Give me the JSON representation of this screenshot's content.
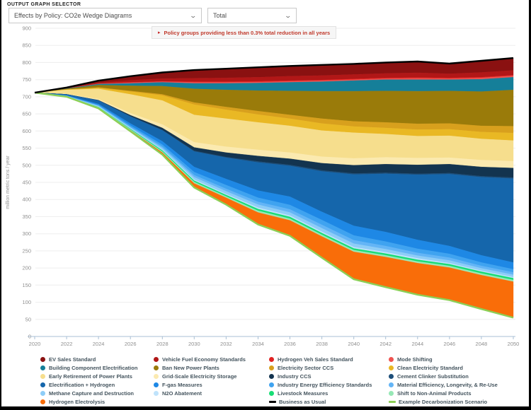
{
  "header": {
    "section_label": "OUTPUT GRAPH SELECTOR",
    "graph_selector": {
      "value": "Effects by Policy: CO2e Wedge Diagrams"
    },
    "mode_selector": {
      "value": "Total"
    },
    "note": {
      "marker": "▸",
      "text": "Policy groups providing less than 0.3% total reduction in all years"
    }
  },
  "chart_data": {
    "type": "area",
    "stacked": true,
    "title": "",
    "xlabel": "",
    "ylabel": "million metric tons / year",
    "ylim": [
      0,
      900
    ],
    "ytick_step": 50,
    "grid": true,
    "legend_position": "bottom",
    "x": [
      2020,
      2022,
      2024,
      2026,
      2028,
      2030,
      2032,
      2034,
      2036,
      2038,
      2040,
      2042,
      2044,
      2046,
      2048,
      2050
    ],
    "xticks": [
      2020,
      2022,
      2024,
      2026,
      2028,
      2030,
      2032,
      2034,
      2036,
      2038,
      2040,
      2042,
      2044,
      2046,
      2048,
      2050
    ],
    "bau_line": {
      "name": "Business as Usual",
      "color": "#000000",
      "values": [
        712,
        727,
        747,
        760,
        771,
        778,
        782,
        786,
        790,
        793,
        796,
        800,
        803,
        797,
        805,
        813
      ]
    },
    "scenario_line": {
      "name": "Example Decarbonization Scenario",
      "color": "#8ccf56",
      "values": [
        712,
        700,
        666,
        601,
        531,
        435,
        385,
        327,
        294,
        230,
        167,
        144,
        122,
        106,
        80,
        55
      ]
    },
    "series": [
      {
        "name": "EV Sales Standard",
        "color": "#8a1111",
        "values": [
          0,
          2,
          6,
          12,
          18,
          24,
          27,
          29,
          30,
          31,
          31,
          32,
          33,
          30,
          34,
          36
        ]
      },
      {
        "name": "Vehicle Fuel Economy Standards",
        "color": "#b11717",
        "values": [
          0,
          1,
          3,
          6,
          8,
          10,
          11,
          12,
          13,
          13,
          13,
          13,
          14,
          12,
          14,
          14
        ]
      },
      {
        "name": "Hydrogen Veh Sales Standard",
        "color": "#e02222",
        "values": [
          0,
          0,
          0,
          1,
          1,
          2,
          2,
          2,
          2,
          2,
          2,
          2,
          2,
          2,
          2,
          2
        ]
      },
      {
        "name": "Mode Shifting",
        "color": "#ef5350",
        "values": [
          0,
          0,
          1,
          2,
          2,
          3,
          3,
          3,
          3,
          3,
          3,
          3,
          4,
          3,
          4,
          4
        ]
      },
      {
        "name": "Building Component Electrification",
        "color": "#157f99",
        "values": [
          0,
          1,
          3,
          7,
          11,
          16,
          19,
          22,
          25,
          28,
          31,
          33,
          34,
          33,
          36,
          37
        ]
      },
      {
        "name": "Ban New Power Plants",
        "color": "#9a7b0a",
        "values": [
          0,
          2,
          7,
          15,
          24,
          40,
          50,
          60,
          70,
          80,
          88,
          92,
          95,
          95,
          100,
          106
        ]
      },
      {
        "name": "Electricity Sector CCS",
        "color": "#d8a01d",
        "values": [
          0,
          0,
          1,
          2,
          3,
          6,
          8,
          10,
          11,
          14,
          15,
          16,
          17,
          17,
          18,
          20
        ]
      },
      {
        "name": "Clean Electricity Standard",
        "color": "#e9b824",
        "values": [
          0,
          1,
          3,
          8,
          15,
          30,
          26,
          23,
          21,
          21,
          18,
          18,
          19,
          19,
          20,
          22
        ]
      },
      {
        "name": "Early Retirement of Power Plants",
        "color": "#f6de8d",
        "values": [
          0,
          12,
          30,
          55,
          70,
          80,
          82,
          80,
          78,
          76,
          75,
          68,
          64,
          64,
          62,
          60
        ]
      },
      {
        "name": "Grid-Scale Electricity Storage",
        "color": "#fbeab0",
        "values": [
          0,
          1,
          3,
          6,
          10,
          15,
          17,
          18,
          18,
          19,
          20,
          20,
          20,
          19,
          20,
          20
        ]
      },
      {
        "name": "Industry CCS",
        "color": "#13344f",
        "values": [
          0,
          0,
          1,
          3,
          6,
          10,
          13,
          16,
          18,
          21,
          24,
          25,
          26,
          26,
          27,
          28
        ]
      },
      {
        "name": "Cement Clinker Substitution",
        "color": "#1d4e79",
        "values": [
          0,
          0,
          0,
          1,
          1,
          2,
          2,
          3,
          3,
          3,
          3,
          3,
          3,
          3,
          3,
          3
        ]
      },
      {
        "name": "Electrification + Hydrogen",
        "color": "#1566ab",
        "values": [
          0,
          3,
          10,
          20,
          32,
          45,
          62,
          82,
          90,
          118,
          150,
          170,
          190,
          210,
          228,
          245
        ]
      },
      {
        "name": "F-gas Measures",
        "color": "#1e88e5",
        "values": [
          0,
          1,
          3,
          6,
          10,
          15,
          18,
          21,
          24,
          24,
          28,
          28,
          26,
          23,
          21,
          20
        ]
      },
      {
        "name": "Industry Energy Efficiency Standards",
        "color": "#3fa3f0",
        "values": [
          0,
          1,
          2,
          4,
          6,
          9,
          11,
          12,
          13,
          14,
          14,
          13,
          12,
          11,
          10,
          9
        ]
      },
      {
        "name": "Material Efficiency, Longevity, & Re-Use",
        "color": "#64b5f6",
        "values": [
          0,
          0,
          1,
          2,
          4,
          6,
          7,
          8,
          9,
          10,
          10,
          9,
          8,
          8,
          7,
          7
        ]
      },
      {
        "name": "Methane Capture and Destruction",
        "color": "#8ecdf7",
        "values": [
          0,
          1,
          2,
          3,
          5,
          7,
          8,
          9,
          9,
          10,
          10,
          9,
          8,
          8,
          7,
          7
        ]
      },
      {
        "name": "N2O Abatement",
        "color": "#bfe3fb",
        "values": [
          0,
          0,
          1,
          1,
          2,
          3,
          3,
          4,
          4,
          4,
          4,
          4,
          4,
          3,
          3,
          3
        ]
      },
      {
        "name": "Livestock Measures",
        "color": "#17dd75",
        "values": [
          0,
          0,
          1,
          2,
          3,
          4,
          4,
          5,
          5,
          5,
          5,
          5,
          5,
          5,
          5,
          5
        ]
      },
      {
        "name": "Shift to Non-Animal Products",
        "color": "#97e8b6",
        "values": [
          0,
          0,
          1,
          2,
          3,
          4,
          4,
          5,
          5,
          5,
          5,
          5,
          5,
          5,
          5,
          5
        ]
      },
      {
        "name": "Hydrogen Electrolysis",
        "color": "#f96d09",
        "values": [
          0,
          1,
          2,
          3,
          6,
          12,
          20,
          35,
          45,
          62,
          80,
          88,
          92,
          95,
          99,
          105
        ]
      }
    ]
  },
  "legend": {
    "items": [
      {
        "label": "EV Sales Standard",
        "color": "#8a1111",
        "type": "area"
      },
      {
        "label": "Vehicle Fuel Economy Standards",
        "color": "#b11717",
        "type": "area"
      },
      {
        "label": "Hydrogen Veh Sales Standard",
        "color": "#e02222",
        "type": "area"
      },
      {
        "label": "Mode Shifting",
        "color": "#ef5350",
        "type": "area"
      },
      {
        "label": "Building Component Electrification",
        "color": "#157f99",
        "type": "area"
      },
      {
        "label": "Ban New Power Plants",
        "color": "#9a7b0a",
        "type": "area"
      },
      {
        "label": "Electricity Sector CCS",
        "color": "#d8a01d",
        "type": "area"
      },
      {
        "label": "Clean Electricity Standard",
        "color": "#e9b824",
        "type": "area"
      },
      {
        "label": "Early Retirement of Power Plants",
        "color": "#f6de8d",
        "type": "area"
      },
      {
        "label": "Grid-Scale Electricity Storage",
        "color": "#fbeab0",
        "type": "area"
      },
      {
        "label": "Industry CCS",
        "color": "#13344f",
        "type": "area"
      },
      {
        "label": "Cement Clinker Substitution",
        "color": "#1d4e79",
        "type": "area"
      },
      {
        "label": "Electrification + Hydrogen",
        "color": "#1566ab",
        "type": "area"
      },
      {
        "label": "F-gas Measures",
        "color": "#1e88e5",
        "type": "area"
      },
      {
        "label": "Industry Energy Efficiency Standards",
        "color": "#3fa3f0",
        "type": "area"
      },
      {
        "label": "Material Efficiency, Longevity, & Re-Use",
        "color": "#64b5f6",
        "type": "area"
      },
      {
        "label": "Methane Capture and Destruction",
        "color": "#8ecdf7",
        "type": "area"
      },
      {
        "label": "N2O Abatement",
        "color": "#bfe3fb",
        "type": "area"
      },
      {
        "label": "Livestock Measures",
        "color": "#17dd75",
        "type": "area"
      },
      {
        "label": "Shift to Non-Animal Products",
        "color": "#97e8b6",
        "type": "area"
      },
      {
        "label": "Hydrogen Electrolysis",
        "color": "#f96d09",
        "type": "area"
      },
      {
        "label": "",
        "color": null,
        "type": "spacer"
      },
      {
        "label": "Business as Usual",
        "color": "#000000",
        "type": "line"
      },
      {
        "label": "Example Decarbonization Scenario",
        "color": "#8ccf56",
        "type": "line"
      }
    ]
  }
}
